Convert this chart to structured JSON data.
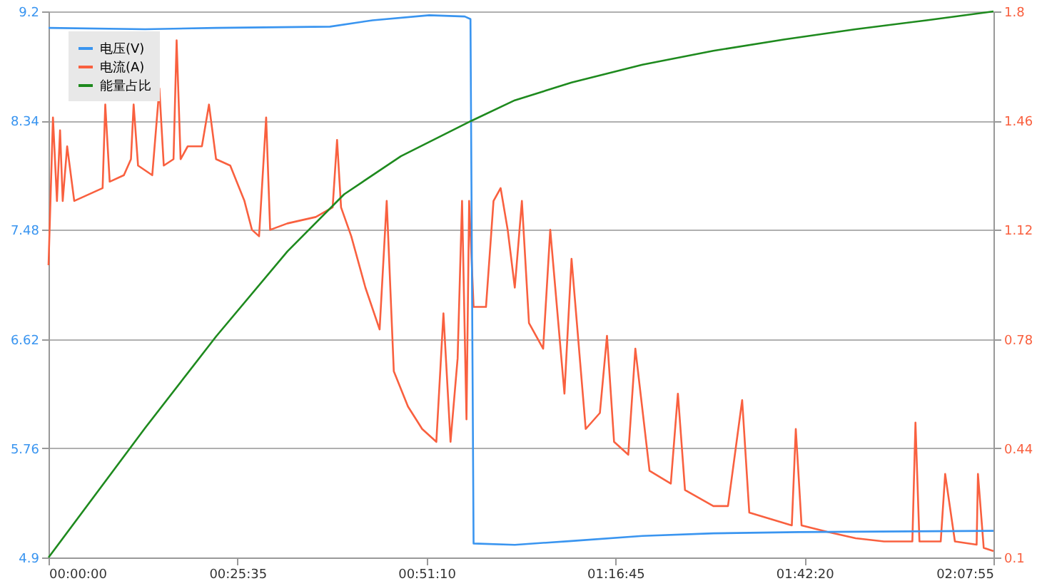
{
  "chart_data": {
    "type": "line",
    "xlim": [
      0,
      2.132
    ],
    "xticks": [
      {
        "value": 0,
        "label": "00:00:00"
      },
      {
        "value": 0.42639,
        "label": "00:25:35"
      },
      {
        "value": 0.85278,
        "label": "00:51:10"
      },
      {
        "value": 1.27917,
        "label": "01:16:45"
      },
      {
        "value": 1.70556,
        "label": "01:42:20"
      },
      {
        "value": 2.132,
        "label": "02:07:55"
      }
    ],
    "ylim": [
      4.9,
      9.2
    ],
    "yticks": [
      4.9,
      5.76,
      6.62,
      7.48,
      8.34,
      9.2
    ],
    "y2lim": [
      0.1,
      1.8
    ],
    "y2ticks": [
      0.1,
      0.44,
      0.78,
      1.12,
      1.46,
      1.8
    ],
    "grid": "y",
    "legend": "top left",
    "marker": "none",
    "line_style": "solid",
    "series": [
      {
        "name": "电压(V)",
        "color": "#3a95f0",
        "x": [
          0,
          0.218,
          0.378,
          0.635,
          0.731,
          0.859,
          0.939,
          0.952,
          0.959,
          1.052,
          1.18,
          1.34,
          1.5,
          1.692,
          2.132
        ],
        "values": [
          9.07,
          9.06,
          9.07,
          9.08,
          9.13,
          9.17,
          9.16,
          9.14,
          5.01,
          5.0,
          5.03,
          5.07,
          5.09,
          5.1,
          5.11
        ]
      },
      {
        "name": "电流(A)",
        "color": "#f9603f",
        "axis": "y2",
        "x": [
          0,
          0.01,
          0.019,
          0.026,
          0.032,
          0.042,
          0.058,
          0.09,
          0.122,
          0.128,
          0.138,
          0.17,
          0.186,
          0.192,
          0.202,
          0.234,
          0.25,
          0.26,
          0.282,
          0.289,
          0.298,
          0.314,
          0.346,
          0.362,
          0.378,
          0.41,
          0.442,
          0.459,
          0.475,
          0.491,
          0.5,
          0.539,
          0.603,
          0.641,
          0.651,
          0.66,
          0.683,
          0.715,
          0.747,
          0.763,
          0.779,
          0.811,
          0.843,
          0.875,
          0.891,
          0.907,
          0.923,
          0.933,
          0.943,
          0.949,
          0.959,
          0.987,
          1.004,
          1.02,
          1.036,
          1.052,
          1.068,
          1.084,
          1.116,
          1.132,
          1.164,
          1.18,
          1.212,
          1.244,
          1.26,
          1.276,
          1.308,
          1.324,
          1.356,
          1.404,
          1.42,
          1.436,
          1.5,
          1.533,
          1.565,
          1.581,
          1.629,
          1.677,
          1.686,
          1.699,
          1.757,
          1.821,
          1.885,
          1.949,
          1.956,
          1.965,
          2.013,
          2.023,
          2.045,
          2.094,
          2.097,
          2.11,
          2.132
        ],
        "values": [
          1.01,
          1.47,
          1.21,
          1.43,
          1.21,
          1.38,
          1.21,
          1.23,
          1.25,
          1.51,
          1.27,
          1.29,
          1.34,
          1.51,
          1.32,
          1.29,
          1.56,
          1.32,
          1.34,
          1.71,
          1.34,
          1.38,
          1.38,
          1.51,
          1.34,
          1.32,
          1.21,
          1.12,
          1.1,
          1.47,
          1.12,
          1.14,
          1.16,
          1.19,
          1.4,
          1.19,
          1.1,
          0.94,
          0.81,
          1.21,
          0.68,
          0.57,
          0.5,
          0.46,
          0.86,
          0.46,
          0.72,
          1.21,
          0.53,
          1.21,
          0.88,
          0.88,
          1.21,
          1.25,
          1.12,
          0.94,
          1.21,
          0.83,
          0.75,
          1.12,
          0.61,
          1.03,
          0.5,
          0.55,
          0.79,
          0.46,
          0.42,
          0.75,
          0.37,
          0.33,
          0.61,
          0.31,
          0.26,
          0.26,
          0.59,
          0.24,
          0.22,
          0.2,
          0.5,
          0.2,
          0.18,
          0.16,
          0.15,
          0.15,
          0.52,
          0.15,
          0.15,
          0.36,
          0.15,
          0.14,
          0.36,
          0.13,
          0.12
        ]
      },
      {
        "name": "能量占比",
        "color": "#1e8a1e",
        "x": [
          0,
          0.218,
          0.378,
          0.539,
          0.667,
          0.795,
          0.955,
          1.052,
          1.18,
          1.34,
          1.5,
          1.661,
          1.821,
          1.981,
          2.132
        ],
        "values": [
          4.9,
          5.92,
          6.64,
          7.31,
          7.76,
          8.06,
          8.34,
          8.5,
          8.64,
          8.78,
          8.89,
          8.98,
          9.06,
          9.13,
          9.2
        ]
      }
    ]
  }
}
